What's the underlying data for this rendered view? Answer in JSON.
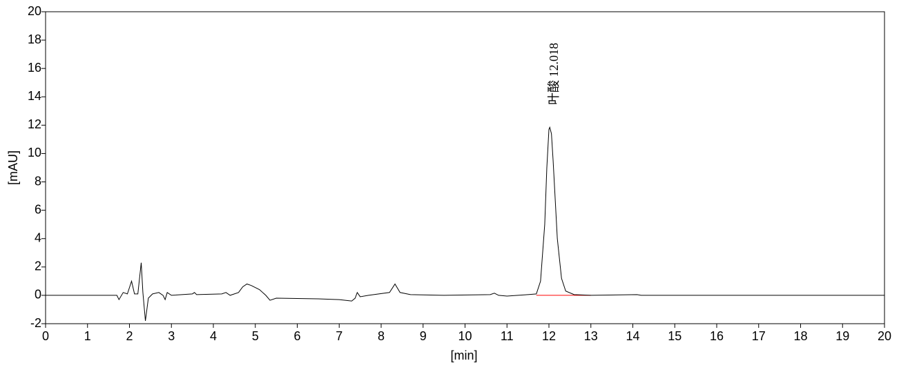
{
  "chart_data": {
    "type": "line",
    "xlabel": "[min]",
    "ylabel": "[mAU]",
    "xlim": [
      0,
      20
    ],
    "ylim": [
      -2,
      20
    ],
    "xticks": [
      0,
      1,
      2,
      3,
      4,
      5,
      6,
      7,
      8,
      9,
      10,
      11,
      12,
      13,
      14,
      15,
      16,
      17,
      18,
      19,
      20
    ],
    "yticks": [
      -2,
      0,
      2,
      4,
      6,
      8,
      10,
      12,
      14,
      16,
      18,
      20
    ],
    "grid": false,
    "series": [
      {
        "color": "#000000",
        "x": [
          0,
          1.7,
          1.75,
          1.85,
          1.95,
          2.05,
          2.12,
          2.2,
          2.28,
          2.32,
          2.38,
          2.45,
          2.55,
          2.7,
          2.8,
          2.85,
          2.9,
          3.0,
          3.5,
          3.55,
          3.6,
          4.2,
          4.3,
          4.4,
          4.6,
          4.7,
          4.8,
          4.9,
          5.1,
          5.25,
          5.35,
          5.5,
          6.5,
          7.0,
          7.3,
          7.38,
          7.43,
          7.5,
          7.7,
          8.2,
          8.33,
          8.45,
          8.7,
          9.5,
          10.6,
          10.7,
          10.8,
          11.0,
          11.5,
          11.7,
          11.8,
          11.9,
          11.95,
          12.0,
          12.02,
          12.06,
          12.1,
          12.2,
          12.3,
          12.4,
          12.6,
          13.0,
          14.1,
          14.2,
          16.4,
          20
        ],
        "values": [
          0,
          0,
          -0.3,
          0.2,
          0.1,
          1.0,
          0.1,
          0.1,
          2.3,
          0.2,
          -1.8,
          -0.2,
          0.1,
          0.2,
          0.0,
          -0.3,
          0.2,
          0.0,
          0.1,
          0.2,
          0.05,
          0.1,
          0.2,
          0.0,
          0.2,
          0.6,
          0.8,
          0.7,
          0.4,
          0.0,
          -0.35,
          -0.2,
          -0.25,
          -0.3,
          -0.4,
          -0.2,
          0.2,
          -0.1,
          0.0,
          0.2,
          0.8,
          0.2,
          0.05,
          0.0,
          0.05,
          0.15,
          0.0,
          -0.05,
          0.05,
          0.1,
          1.0,
          5,
          9,
          11.7,
          11.85,
          11.4,
          9.5,
          4,
          1.2,
          0.3,
          0.05,
          0,
          0.05,
          0,
          0,
          0
        ]
      }
    ],
    "integration_baseline": {
      "x": [
        11.7,
        13.0
      ],
      "values": [
        0,
        0
      ],
      "color": "#ff0000"
    },
    "annotations": [
      {
        "text": "叶酸 12.018",
        "color": "#5a5ad2"
      }
    ]
  }
}
